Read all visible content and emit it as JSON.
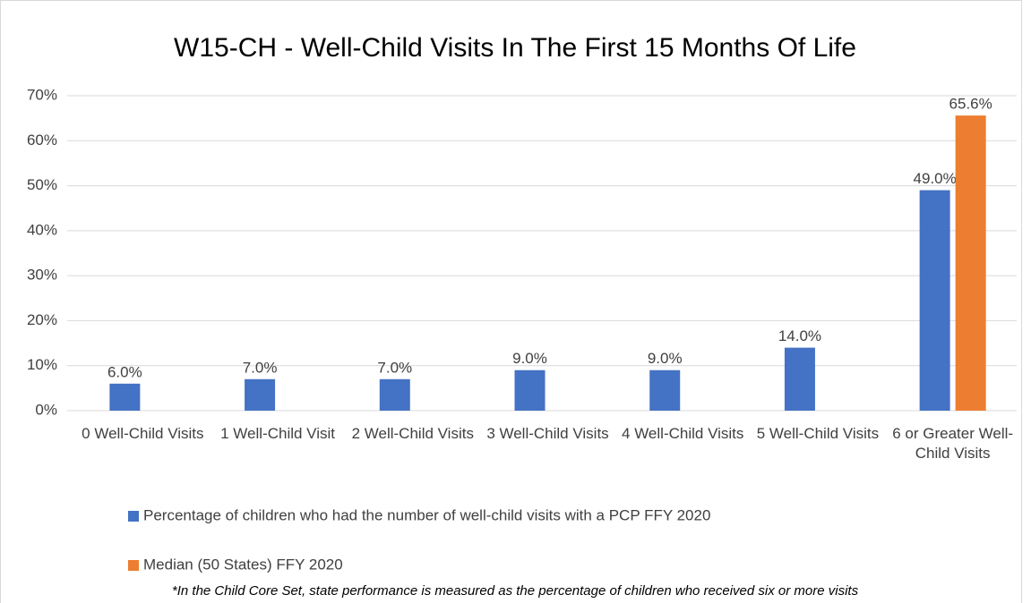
{
  "chart_data": {
    "type": "bar",
    "title": "W15-CH - Well-Child Visits In The First 15 Months Of Life",
    "categories": [
      "0 Well-Child Visits",
      "1 Well-Child Visit",
      "2 Well-Child Visits",
      "3 Well-Child Visits",
      "4 Well-Child Visits",
      "5 Well-Child Visits",
      "6 or Greater Well-Child Visits"
    ],
    "series": [
      {
        "name": "Percentage of children who had the number of well-child visits with a PCP FFY 2020",
        "color": "#4472c4",
        "values": [
          6,
          7,
          7,
          9,
          9,
          14,
          49
        ],
        "value_labels": [
          "6.0%",
          "7.0%",
          "7.0%",
          "9.0%",
          "9.0%",
          "14.0%",
          "49.0%"
        ]
      },
      {
        "name": "Median (50 States) FFY 2020",
        "color": "#ed7d31",
        "values": [
          null,
          null,
          null,
          null,
          null,
          null,
          65.6
        ],
        "value_labels": [
          null,
          null,
          null,
          null,
          null,
          null,
          "65.6%"
        ]
      }
    ],
    "ylim": [
      0,
      70
    ],
    "yticks": [
      {
        "value": 0,
        "label": "0%"
      },
      {
        "value": 10,
        "label": "10%"
      },
      {
        "value": 20,
        "label": "20%"
      },
      {
        "value": 30,
        "label": "30%"
      },
      {
        "value": 40,
        "label": "40%"
      },
      {
        "value": 50,
        "label": "50%"
      },
      {
        "value": 60,
        "label": "60%"
      },
      {
        "value": 70,
        "label": "70%"
      }
    ],
    "grid": true,
    "annotation": "*In the Child Core Set, state performance is measured as the percentage of children who received six or more visits"
  }
}
